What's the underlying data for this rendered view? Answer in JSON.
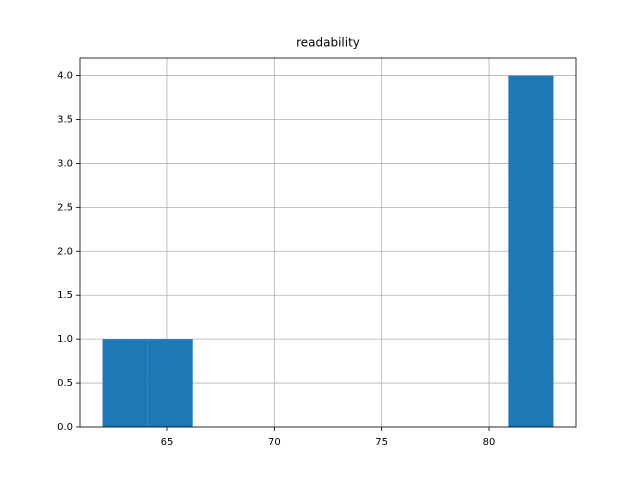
{
  "chart_data": {
    "type": "histogram",
    "title": "readability",
    "bins": [
      62,
      64.1,
      66.2,
      68.3,
      70.4,
      72.5,
      74.6,
      76.7,
      78.8,
      80.9,
      83
    ],
    "counts": [
      1,
      1,
      0,
      0,
      0,
      0,
      0,
      0,
      0,
      4
    ],
    "color": "#1f77b4",
    "xlim": [
      60.95,
      84.05
    ],
    "xticks": [
      65,
      70,
      75,
      80
    ],
    "ylim": [
      0,
      4.2
    ],
    "yticks": [
      {
        "value": 0,
        "label": "0.0"
      },
      0.5,
      {
        "value": 1,
        "label": "1.0"
      },
      1.5,
      {
        "value": 2,
        "label": "2.0"
      },
      2.5,
      {
        "value": 3,
        "label": "3.0"
      },
      3.5,
      {
        "value": 4,
        "label": "4.0"
      }
    ],
    "grid": true
  }
}
